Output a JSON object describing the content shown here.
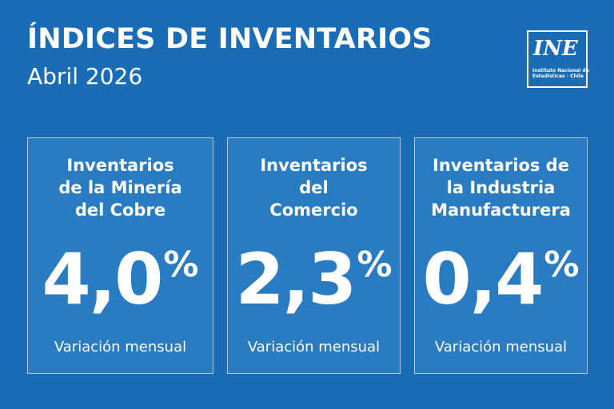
{
  "header": {
    "title": "ÍNDICES DE INVENTARIOS",
    "subtitle": "Abril 2026"
  },
  "logo": {
    "mark": "INE",
    "caption_line1": "Instituto Nacional de",
    "caption_line2": "Estadísticas · Chile"
  },
  "cards": [
    {
      "label_lines": [
        "Inventarios",
        "de la Minería",
        "del Cobre"
      ],
      "value": "4,0",
      "unit": "%",
      "caption": "Variación mensual"
    },
    {
      "label_lines": [
        "Inventarios",
        "del",
        "Comercio"
      ],
      "value": "2,3",
      "unit": "%",
      "caption": "Variación mensual"
    },
    {
      "label_lines": [
        "Inventarios de",
        "la Industria",
        "Manufacturera"
      ],
      "value": "0,4",
      "unit": "%",
      "caption": "Variación mensual"
    }
  ],
  "colors": {
    "background": "#1a6db5",
    "card_border": "#a9c9e8",
    "text": "#ffffff"
  }
}
